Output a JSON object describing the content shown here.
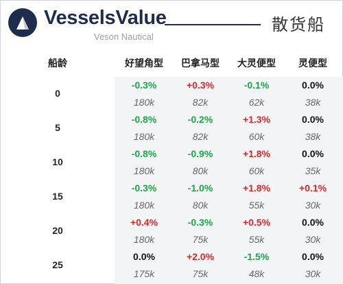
{
  "brand": {
    "name": "VesselsValue",
    "sub": "Veson Nautical",
    "accent": "#1f2d4d"
  },
  "page_title": "散货船",
  "table": {
    "age_header": "船龄",
    "columns": [
      "好望角型",
      "巴拿马型",
      "大灵便型",
      "灵便型"
    ],
    "rows": [
      {
        "age": "0",
        "cells": [
          {
            "change": "-0.3%",
            "value": "180k"
          },
          {
            "change": "+0.3%",
            "value": "82k"
          },
          {
            "change": "-0.1%",
            "value": "62k"
          },
          {
            "change": "0.0%",
            "value": "38k"
          }
        ]
      },
      {
        "age": "5",
        "cells": [
          {
            "change": "-0.8%",
            "value": "180k"
          },
          {
            "change": "-0.2%",
            "value": "82k"
          },
          {
            "change": "+1.3%",
            "value": "60k"
          },
          {
            "change": "0.0%",
            "value": "38k"
          }
        ]
      },
      {
        "age": "10",
        "cells": [
          {
            "change": "-0.8%",
            "value": "180k"
          },
          {
            "change": "-0.9%",
            "value": "80k"
          },
          {
            "change": "+1.8%",
            "value": "60k"
          },
          {
            "change": "0.0%",
            "value": "35k"
          }
        ]
      },
      {
        "age": "15",
        "cells": [
          {
            "change": "-0.3%",
            "value": "180k"
          },
          {
            "change": "-1.0%",
            "value": "80k"
          },
          {
            "change": "+1.8%",
            "value": "55k"
          },
          {
            "change": "+0.1%",
            "value": "30k"
          }
        ]
      },
      {
        "age": "20",
        "cells": [
          {
            "change": "+0.4%",
            "value": "180k"
          },
          {
            "change": "-0.3%",
            "value": "75k"
          },
          {
            "change": "+0.5%",
            "value": "55k"
          },
          {
            "change": "0.0%",
            "value": "30k"
          }
        ]
      },
      {
        "age": "25",
        "cells": [
          {
            "change": "0.0%",
            "value": "175k"
          },
          {
            "change": "+2.0%",
            "value": "75k"
          },
          {
            "change": "-1.5%",
            "value": "48k"
          },
          {
            "change": "0.0%",
            "value": "30k"
          }
        ]
      }
    ],
    "colors": {
      "positive": "#d62a2a",
      "negative": "#1fa34a",
      "neutral": "#111111"
    }
  }
}
